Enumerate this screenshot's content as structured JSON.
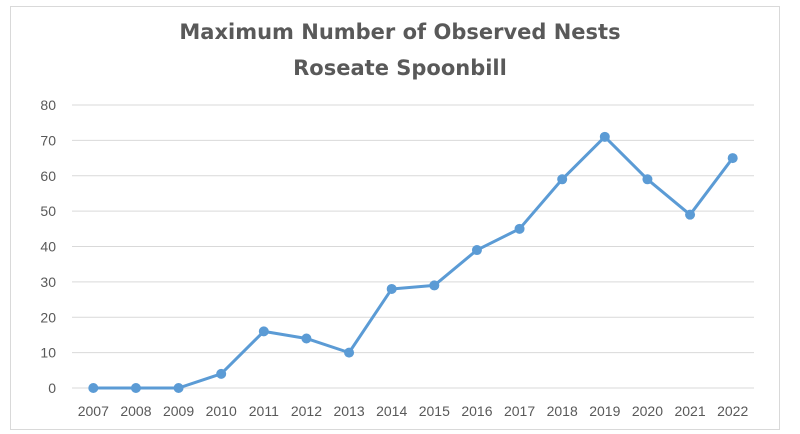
{
  "chart_data": {
    "type": "line",
    "title": "Maximum Number of Observed Nests",
    "subtitle": "Roseate Spoonbill",
    "xlabel": "",
    "ylabel": "",
    "categories": [
      "2007",
      "2008",
      "2009",
      "2010",
      "2011",
      "2012",
      "2013",
      "2014",
      "2015",
      "2016",
      "2017",
      "2018",
      "2019",
      "2020",
      "2021",
      "2022"
    ],
    "series": [
      {
        "values": [
          0,
          0,
          0,
          4,
          16,
          14,
          10,
          28,
          29,
          39,
          45,
          59,
          71,
          59,
          49,
          65
        ]
      }
    ],
    "ylim": [
      0,
      80
    ],
    "yticks": [
      0,
      10,
      20,
      30,
      40,
      50,
      60,
      70,
      80
    ],
    "grid": true,
    "legend": "none",
    "colors": {
      "line": "#5b9bd5",
      "grid": "#d9d9d9",
      "text": "#595959"
    }
  }
}
